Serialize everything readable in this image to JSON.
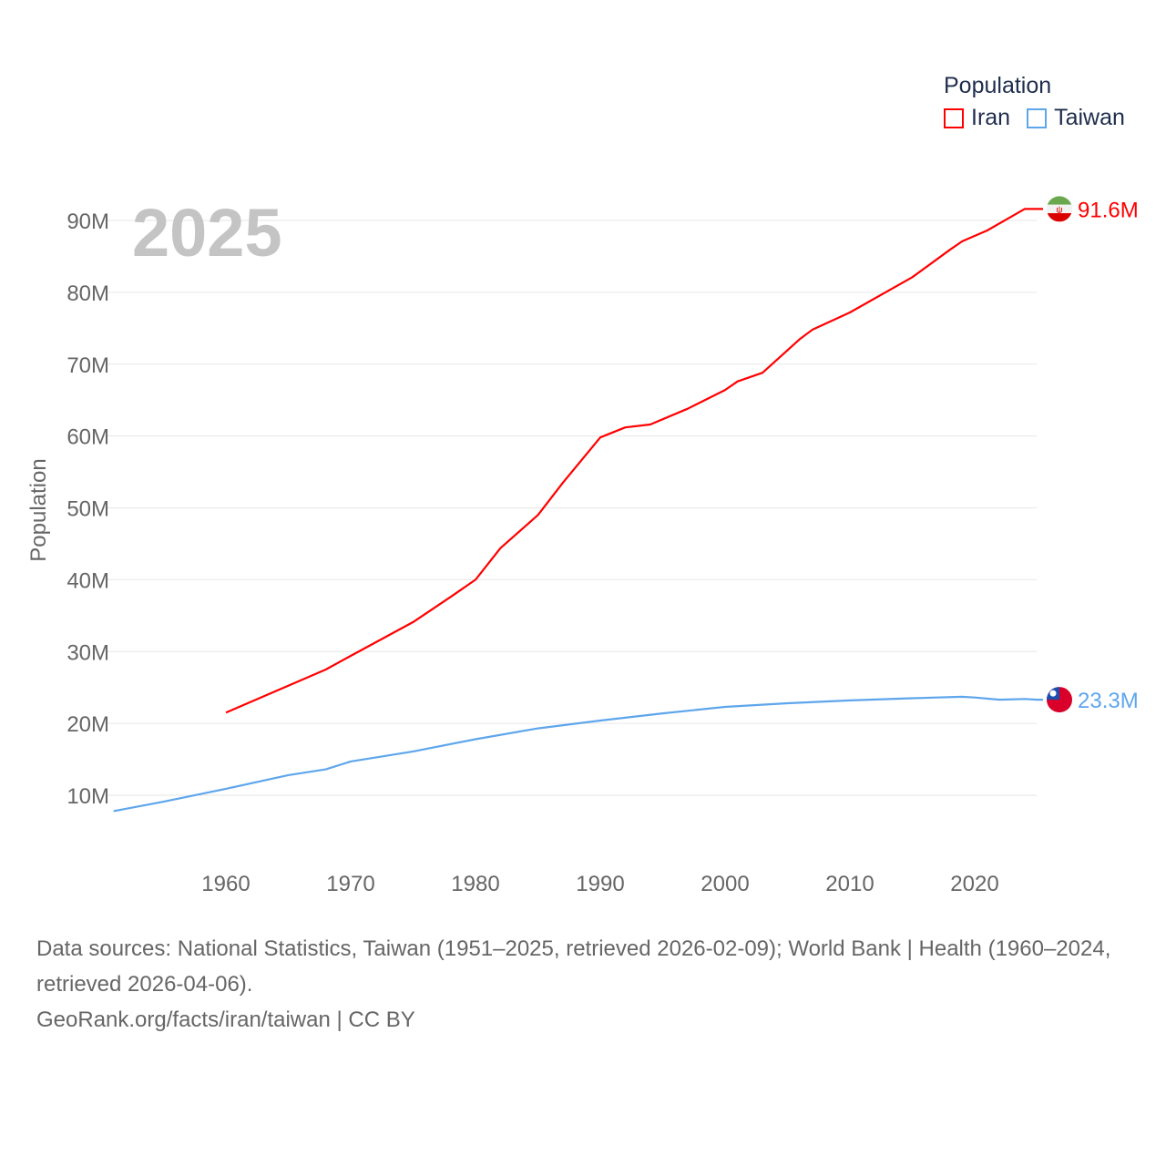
{
  "chart_data": {
    "type": "line",
    "title": "",
    "year_label": "2025",
    "xlabel": "",
    "ylabel": "Population",
    "xlim": [
      1951,
      2025
    ],
    "ylim": [
      0,
      95000000
    ],
    "x_ticks": [
      1960,
      1970,
      1980,
      1990,
      2000,
      2010,
      2020
    ],
    "x_tick_labels": [
      "1960",
      "1970",
      "1980",
      "1990",
      "2000",
      "2010",
      "2020"
    ],
    "y_ticks": [
      10000000,
      20000000,
      30000000,
      40000000,
      50000000,
      60000000,
      70000000,
      80000000,
      90000000
    ],
    "y_tick_labels": [
      "10M",
      "20M",
      "30M",
      "40M",
      "50M",
      "60M",
      "70M",
      "80M",
      "90M"
    ],
    "grid": true,
    "legend": {
      "title": "Population",
      "placement": "top-right"
    },
    "series": [
      {
        "name": "Iran",
        "color": "#ff0000",
        "end_label": "91.6M",
        "flag": "iran-flag",
        "x": [
          1960,
          1968,
          1970,
          1975,
          1978,
          1980,
          1982,
          1985,
          1987,
          1990,
          1992,
          1994,
          1997,
          2000,
          2001,
          2003,
          2006,
          2007,
          2010,
          2015,
          2018,
          2019,
          2021,
          2023,
          2024,
          2025
        ],
        "values": [
          21.5,
          27.5,
          29.4,
          34.1,
          37.6,
          40.0,
          44.4,
          49.0,
          53.5,
          59.8,
          61.2,
          61.6,
          63.8,
          66.4,
          67.6,
          68.8,
          73.5,
          74.8,
          77.2,
          82.1,
          85.9,
          87.1,
          88.6,
          90.6,
          91.6,
          91.6
        ]
      },
      {
        "name": "Taiwan",
        "color": "#5ea6ec",
        "end_label": "23.3M",
        "flag": "taiwan-flag",
        "x": [
          1951,
          1955,
          1960,
          1965,
          1968,
          1970,
          1975,
          1980,
          1985,
          1990,
          1995,
          2000,
          2005,
          2010,
          2015,
          2019,
          2020,
          2022,
          2024,
          2025
        ],
        "values": [
          7.8,
          9.1,
          10.9,
          12.8,
          13.6,
          14.7,
          16.1,
          17.8,
          19.3,
          20.4,
          21.4,
          22.3,
          22.8,
          23.2,
          23.5,
          23.7,
          23.6,
          23.3,
          23.4,
          23.3
        ]
      }
    ],
    "value_unit": "millions"
  },
  "source": {
    "line1": "Data sources: National Statistics, Taiwan (1951–2025, retrieved 2026-02-09); World Bank | Health (1960–2024, retrieved 2026-04-06).",
    "line2": "GeoRank.org/facts/iran/taiwan | CC BY"
  }
}
